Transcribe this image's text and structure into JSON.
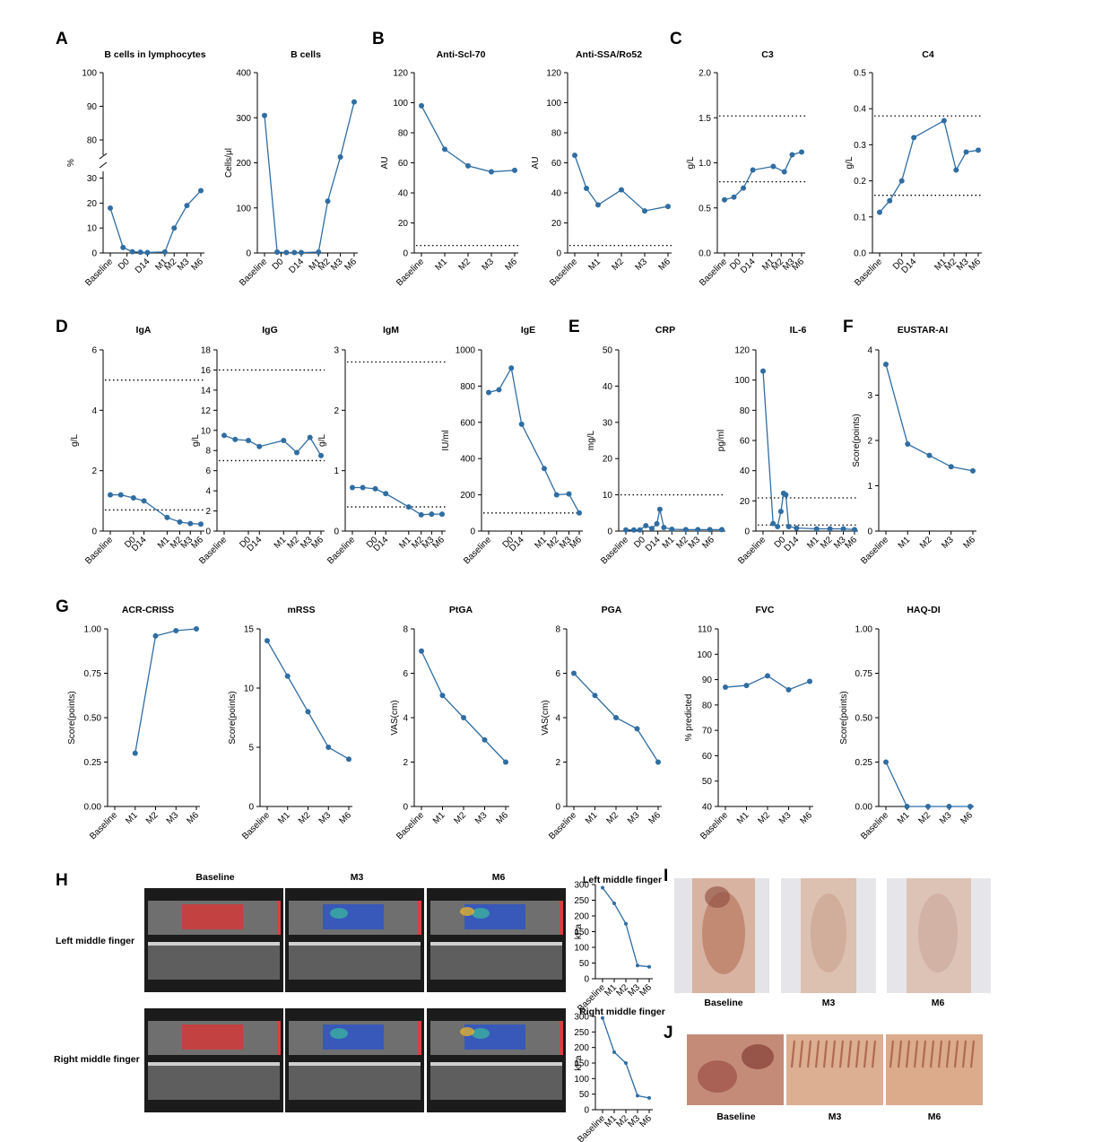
{
  "panel_letters": [
    "A",
    "B",
    "C",
    "D",
    "E",
    "F",
    "G",
    "H",
    "I",
    "J"
  ],
  "chart_data": [
    {
      "type": "line",
      "id": "A1",
      "title": "B cells in lymphocytes",
      "ylabel": "%",
      "categories": [
        "Baseline",
        "D0",
        "D14",
        "M1",
        "M2",
        "M3",
        "M6"
      ],
      "x": [
        0,
        0.55,
        0.95,
        1.3,
        1.6,
        2.35,
        2.75,
        3.3,
        3.9
      ],
      "values": [
        18,
        2.2,
        0.5,
        0.3,
        0.2,
        0.4,
        10,
        19,
        25
      ],
      "ylim": [
        0,
        100
      ],
      "yticks": [
        0,
        10,
        20,
        30,
        80,
        90,
        100
      ],
      "axis_break": [
        32,
        76
      ]
    },
    {
      "type": "line",
      "id": "A2",
      "title": "B cells",
      "ylabel": "Cells/μl",
      "categories": [
        "Baseline",
        "D0",
        "D14",
        "M1",
        "M2",
        "M3",
        "M6"
      ],
      "x": [
        0,
        0.55,
        0.95,
        1.3,
        1.6,
        2.35,
        2.75,
        3.3,
        3.9
      ],
      "values": [
        305,
        2,
        1,
        1,
        1,
        2,
        115,
        213,
        335
      ],
      "ylim": [
        0,
        400
      ],
      "yticks": [
        0,
        100,
        200,
        300,
        400
      ]
    },
    {
      "type": "line",
      "id": "B1",
      "title": "Anti-Scl-70",
      "ylabel": "AU",
      "categories": [
        "Baseline",
        "M1",
        "M2",
        "M3",
        "M6"
      ],
      "x": [
        0,
        1,
        2,
        3,
        4
      ],
      "values": [
        98,
        69,
        58,
        54,
        55
      ],
      "ylim": [
        0,
        120
      ],
      "yticks": [
        0,
        20,
        40,
        60,
        80,
        100,
        120
      ],
      "ref": [
        5
      ]
    },
    {
      "type": "line",
      "id": "B2",
      "title": "Anti-SSA/Ro52",
      "ylabel": "AU",
      "categories": [
        "Baseline",
        "M1",
        "M2",
        "M3",
        "M6"
      ],
      "x": [
        0,
        0.5,
        1,
        2,
        3,
        4
      ],
      "values": [
        65,
        43,
        32,
        42,
        28,
        31
      ],
      "ylim": [
        0,
        120
      ],
      "yticks": [
        0,
        20,
        40,
        60,
        80,
        100,
        120
      ],
      "ref": [
        5
      ]
    },
    {
      "type": "line",
      "id": "C1",
      "title": "C3",
      "ylabel": "g/L",
      "categories": [
        "Baseline",
        "D0",
        "D14",
        "M1",
        "M2",
        "M3",
        "M6"
      ],
      "x": [
        0,
        0.6,
        1.2,
        1.8,
        3.1,
        3.8,
        4.3,
        4.9
      ],
      "values": [
        0.59,
        0.62,
        0.72,
        0.92,
        0.96,
        0.9,
        1.09,
        1.12
      ],
      "ylim": [
        0,
        2
      ],
      "yticks": [
        "0.0",
        "0.5",
        "1.0",
        "1.5",
        "2.0"
      ],
      "ref": [
        1.52,
        0.79
      ]
    },
    {
      "type": "line",
      "id": "C2",
      "title": "C4",
      "ylabel": "g/L",
      "categories": [
        "Baseline",
        "D0",
        "D14",
        "M1",
        "M2",
        "M3",
        "M6"
      ],
      "x": [
        0,
        0.5,
        1.1,
        1.7,
        3.2,
        3.8,
        4.3,
        4.9
      ],
      "values": [
        0.113,
        0.145,
        0.2,
        0.32,
        0.367,
        0.23,
        0.28,
        0.285
      ],
      "ylim": [
        0,
        0.5
      ],
      "yticks": [
        "0.0",
        "0.1",
        "0.2",
        "0.3",
        "0.4",
        "0.5"
      ],
      "ref": [
        0.38,
        0.16
      ]
    },
    {
      "type": "line",
      "id": "D1",
      "title": "IgA",
      "ylabel": "g/L",
      "categories": [
        "Baseline",
        "D0",
        "D14",
        "M1",
        "M2",
        "M3",
        "M6"
      ],
      "x": [
        0,
        0.5,
        1.1,
        1.6,
        2.7,
        3.3,
        3.8,
        4.3
      ],
      "values": [
        1.2,
        1.2,
        1.1,
        1.0,
        0.45,
        0.3,
        0.25,
        0.23
      ],
      "ylim": [
        0,
        6
      ],
      "yticks": [
        0,
        2,
        4,
        6
      ],
      "ref": [
        5.0,
        0.7
      ]
    },
    {
      "type": "line",
      "id": "D2",
      "title": "IgG",
      "ylabel": "g/L",
      "categories": [
        "Baseline",
        "D0",
        "D14",
        "M1",
        "M2",
        "M3",
        "M6"
      ],
      "x": [
        0,
        0.5,
        1.1,
        1.6,
        2.7,
        3.3,
        3.9,
        4.4
      ],
      "values": [
        9.5,
        9.1,
        9.0,
        8.4,
        9.0,
        7.8,
        9.3,
        7.5
      ],
      "ylim": [
        0,
        18
      ],
      "yticks": [
        0,
        2,
        4,
        6,
        8,
        10,
        12,
        14,
        16,
        18
      ],
      "ref": [
        16,
        7
      ]
    },
    {
      "type": "line",
      "id": "D3",
      "title": "IgM",
      "ylabel": "g/L",
      "categories": [
        "Baseline",
        "D0",
        "D14",
        "M1",
        "M2",
        "M3",
        "M6"
      ],
      "x": [
        0,
        0.5,
        1.1,
        1.6,
        2.7,
        3.3,
        3.8,
        4.3
      ],
      "values": [
        0.72,
        0.72,
        0.7,
        0.62,
        0.4,
        0.27,
        0.28,
        0.28
      ],
      "ylim": [
        0,
        3
      ],
      "yticks": [
        0,
        1,
        2,
        3
      ],
      "ref": [
        2.8,
        0.4
      ]
    },
    {
      "type": "line",
      "id": "D4",
      "title": "IgE",
      "ylabel": "IU/ml",
      "categories": [
        "Baseline",
        "D0",
        "D14",
        "M1",
        "M2",
        "M3",
        "M6"
      ],
      "x": [
        0,
        0.5,
        1.1,
        1.6,
        2.7,
        3.3,
        3.9,
        4.4
      ],
      "values": [
        765,
        780,
        900,
        590,
        345,
        200,
        205,
        100
      ],
      "ylim": [
        0,
        1000
      ],
      "yticks": [
        0,
        200,
        400,
        600,
        800,
        1000
      ],
      "ref": [
        100
      ]
    },
    {
      "type": "line",
      "id": "E1",
      "title": "CRP",
      "ylabel": "mg/L",
      "categories": [
        "Baseline",
        "D0",
        "D14",
        "M1",
        "M2",
        "M3",
        "M6"
      ],
      "x": [
        0,
        0.4,
        0.7,
        1.0,
        1.3,
        1.55,
        1.7,
        1.9,
        2.3,
        3.0,
        3.6,
        4.2,
        4.8
      ],
      "values": [
        0.3,
        0.3,
        0.3,
        1.5,
        0.7,
        2.0,
        6.0,
        1.0,
        0.5,
        0.4,
        0.4,
        0.4,
        0.4
      ],
      "ylim": [
        0,
        50
      ],
      "yticks": [
        0,
        10,
        20,
        30,
        40,
        50
      ],
      "ref": [
        10
      ]
    },
    {
      "type": "line",
      "id": "E2",
      "title": "IL-6",
      "ylabel": "pg/ml",
      "categories": [
        "Baseline",
        "D0",
        "D14",
        "M1",
        "M2",
        "M3",
        "M6"
      ],
      "x": [
        0.2,
        0.65,
        0.85,
        1.0,
        1.12,
        1.22,
        1.35,
        1.7,
        2.6,
        3.2,
        3.8,
        4.3
      ],
      "values": [
        106,
        5,
        3,
        13,
        25,
        24,
        3,
        2,
        1.5,
        1.5,
        1.5,
        1.0
      ],
      "ylim": [
        0,
        120
      ],
      "yticks": [
        0,
        20,
        40,
        60,
        80,
        100,
        120
      ],
      "ref": [
        22,
        4
      ]
    },
    {
      "type": "line",
      "id": "F1",
      "title": "EUSTAR-AI",
      "ylabel": "Score(points)",
      "categories": [
        "Baseline",
        "M1",
        "M2",
        "M3",
        "M6"
      ],
      "x": [
        0,
        1,
        2,
        3,
        4
      ],
      "values": [
        3.68,
        1.92,
        1.67,
        1.42,
        1.33
      ],
      "ylim": [
        0,
        4
      ],
      "yticks": [
        0,
        1,
        2,
        3,
        4
      ]
    },
    {
      "type": "line",
      "id": "G1",
      "title": "ACR-CRISS",
      "ylabel": "Score(points)",
      "categories": [
        "Baseline",
        "M1",
        "M2",
        "M3",
        "M6"
      ],
      "x": [
        1,
        2,
        3,
        4
      ],
      "values": [
        0.3,
        0.96,
        0.99,
        1.0
      ],
      "ylim": [
        0,
        1
      ],
      "yticks": [
        "0.00",
        "0.25",
        "0.50",
        "0.75",
        "1.00"
      ]
    },
    {
      "type": "line",
      "id": "G2",
      "title": "mRSS",
      "ylabel": "Score(points)",
      "categories": [
        "Baseline",
        "M1",
        "M2",
        "M3",
        "M6"
      ],
      "x": [
        0,
        1,
        2,
        3,
        4
      ],
      "values": [
        14,
        11,
        8,
        5,
        4
      ],
      "ylim": [
        0,
        15
      ],
      "yticks": [
        0,
        5,
        10,
        15
      ]
    },
    {
      "type": "line",
      "id": "G3",
      "title": "PtGA",
      "ylabel": "VAS(cm)",
      "categories": [
        "Baseline",
        "M1",
        "M2",
        "M3",
        "M6"
      ],
      "x": [
        0,
        1,
        2,
        3,
        4
      ],
      "values": [
        7,
        5,
        4,
        3,
        2
      ],
      "ylim": [
        0,
        8
      ],
      "yticks": [
        0,
        2,
        4,
        6,
        8
      ]
    },
    {
      "type": "line",
      "id": "G4",
      "title": "PGA",
      "ylabel": "VAS(cm)",
      "categories": [
        "Baseline",
        "M1",
        "M2",
        "M3",
        "M6"
      ],
      "x": [
        0,
        1,
        2,
        3,
        4
      ],
      "values": [
        6,
        5,
        4,
        3.5,
        2
      ],
      "ylim": [
        0,
        8
      ],
      "yticks": [
        0,
        2,
        4,
        6,
        8
      ]
    },
    {
      "type": "line",
      "id": "G5",
      "title": "FVC",
      "ylabel": "% predicted",
      "categories": [
        "Baseline",
        "M1",
        "M2",
        "M3",
        "M6"
      ],
      "x": [
        0,
        1,
        2,
        3,
        4
      ],
      "values": [
        87,
        87.7,
        91.5,
        86,
        89.3
      ],
      "ylim": [
        40,
        110
      ],
      "yticks": [
        40,
        50,
        60,
        70,
        80,
        90,
        100,
        110
      ]
    },
    {
      "type": "line",
      "id": "G6",
      "title": "HAQ-DI",
      "ylabel": "Score(points)",
      "categories": [
        "Baseline",
        "M1",
        "M2",
        "M3",
        "M6"
      ],
      "x": [
        0,
        1,
        2,
        3,
        4
      ],
      "values": [
        0.25,
        0,
        0,
        0,
        0
      ],
      "ylim": [
        0,
        1
      ],
      "yticks": [
        "0.00",
        "0.25",
        "0.50",
        "0.75",
        "1.00"
      ]
    },
    {
      "type": "line",
      "id": "H1",
      "title": "Left middle finger",
      "ylabel": "kPa",
      "categories": [
        "Baseline",
        "M1",
        "M2",
        "M3",
        "M6"
      ],
      "x": [
        0,
        1,
        2,
        3,
        4
      ],
      "values": [
        290,
        240,
        175,
        42,
        38
      ],
      "ylim": [
        0,
        300
      ],
      "yticks": [
        0,
        50,
        100,
        150,
        200,
        250,
        300
      ]
    },
    {
      "type": "line",
      "id": "H2",
      "title": "Right middle finger",
      "ylabel": "kPa",
      "categories": [
        "Baseline",
        "M1",
        "M2",
        "M3",
        "M6"
      ],
      "x": [
        0,
        1,
        2,
        3,
        4
      ],
      "values": [
        295,
        185,
        150,
        45,
        38
      ],
      "ylim": [
        0,
        300
      ],
      "yticks": [
        0,
        50,
        100,
        150,
        200,
        250,
        300
      ]
    }
  ],
  "ultrasound": {
    "columns": [
      "Baseline",
      "M3",
      "M6"
    ],
    "rows": [
      "Left middle finger",
      "Right middle finger"
    ]
  },
  "photos_I": {
    "labels": [
      "Baseline",
      "M3",
      "M6"
    ]
  },
  "photos_J": {
    "labels": [
      "Baseline",
      "M3",
      "M6"
    ]
  },
  "colors": {
    "line": "#2f6da3",
    "axis": "#000000",
    "us_background": "#1b1b1b",
    "elasto_red": "#d23a3a",
    "elasto_blue": "#2f55c8",
    "skin": "#c99880",
    "capillary": "#d9a98a"
  }
}
